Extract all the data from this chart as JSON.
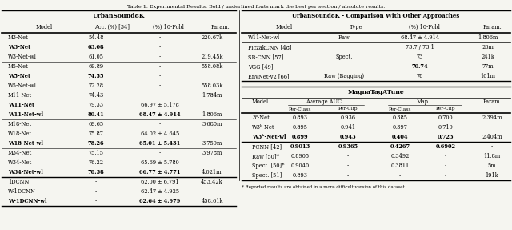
{
  "title": "Table 1. Experimental Results. Bold / underlined fonts mark the best per section / absolute results.",
  "background": "#f5f5f0",
  "left_table": {
    "header_title": "UrbanSound8K",
    "col_headers": [
      "Model",
      "Acc. (%) [34]",
      "(%) 10-Fold",
      "Param."
    ],
    "groups": [
      {
        "rows": [
          [
            "M3-Net",
            "54.48",
            "-",
            "220.67k"
          ],
          [
            "W3-Net",
            "63.08",
            "-",
            ""
          ],
          [
            "W3-Net-wl",
            "61.05",
            "-",
            "219.45k"
          ]
        ]
      },
      {
        "rows": [
          [
            "M5-Net",
            "69.89",
            "-",
            "558.08k"
          ],
          [
            "W5-Net",
            "74.55",
            "-",
            ""
          ],
          [
            "W5-Net-wl",
            "72.28",
            "-",
            "558.03k"
          ]
        ]
      },
      {
        "rows": [
          [
            "M11-Net",
            "74.43",
            "-",
            "1.784m"
          ],
          [
            "W11-Net",
            "79.33",
            "66.97 ± 5.178",
            ""
          ],
          [
            "W11-Net-wl",
            "80.41",
            "68.47 ± 4.914",
            "1.806m"
          ]
        ]
      },
      {
        "rows": [
          [
            "M18-Net",
            "69.65",
            "-",
            "3.680m"
          ],
          [
            "W18-Net",
            "75.87",
            "64.02 ± 4.645",
            ""
          ],
          [
            "W18-Net-wl",
            "78.26",
            "65.01 ± 5.431",
            "3.759m"
          ]
        ]
      },
      {
        "rows": [
          [
            "M34-Net",
            "75.15",
            "-",
            "3.978m"
          ],
          [
            "W34-Net",
            "76.22",
            "65.69 ± 5.780",
            ""
          ],
          [
            "W34-Net-wl",
            "78.38",
            "66.77 ± 4.771",
            "4.021m"
          ]
        ]
      },
      {
        "rows": [
          [
            "1DCNN",
            "-",
            "62.00 ± 6.791",
            "453.42k"
          ],
          [
            "W-1DCNN",
            "-",
            "62.47 ± 4.925",
            ""
          ],
          [
            "W-1DCNN-wl",
            "-",
            "62.64 ± 4.979",
            "458.61k"
          ]
        ]
      }
    ],
    "bold_cells": {
      "1_1": true,
      "2_1": true,
      "2_2": true,
      "4_1": true,
      "5_1": true,
      "5_2": true,
      "7_1": true,
      "8_1": true,
      "8_2": true,
      "10_1": true,
      "11_1": true,
      "11_2": true,
      "13_1": true,
      "14_1": true,
      "14_2": true,
      "17_1": true,
      "17_2": true
    },
    "underline_cells": {
      "7_1": true,
      "8_2": true
    }
  },
  "right_top_table": {
    "header_title": "UrbanSound8K - Comparison With Other Approaches",
    "col_headers": [
      "Model",
      "Type",
      "(%) 10-Fold",
      "Param."
    ],
    "rows": [
      [
        "W11-Net-wl",
        "Raw",
        "68.47 ± 4.914",
        "1.806m"
      ],
      [
        "PiczakCNN [48]",
        "",
        "73.7 / 73.1",
        "26m"
      ],
      [
        "SB-CNN [57]",
        "Spect.",
        "73",
        "241k"
      ],
      [
        "VGG [49]",
        "",
        "70.74",
        "77m"
      ],
      [
        "EnvNet-v2 [66]",
        "Raw (Bagging)",
        "78",
        "101m"
      ]
    ],
    "bold_cells": {
      "4_2": true
    },
    "underline_cells": {
      "4_2": true
    }
  },
  "right_bottom_table": {
    "header_title": "MagnaTagATune",
    "col_headers_top": [
      "Model",
      "Average AUC",
      "",
      "Map",
      "",
      "Param."
    ],
    "col_headers_mid": [
      "",
      "Per-Class",
      "Per-Clip",
      "Per-Class",
      "Per-Clip",
      ""
    ],
    "rows": [
      [
        "3ᵇ-Net",
        "0.893",
        "0.936",
        "0.385",
        "0.700",
        "2.394m"
      ],
      [
        "W3ᵇ-Net",
        "0.895",
        "0.941",
        "0.397",
        "0.719",
        ""
      ],
      [
        "W3ᵇ-Net-wl",
        "0.899",
        "0.943",
        "0.404",
        "0.723",
        "2.404m"
      ],
      [
        "PCNN [42]",
        "0.9013",
        "0.9365",
        "0.4267",
        "0.6902",
        "-"
      ],
      [
        "Raw [50]*",
        "0.8905",
        "-",
        "0.3492",
        "-",
        "11.8m"
      ],
      [
        "Spect. [50]*",
        "0.9040",
        "-",
        "0.3811",
        "-",
        "5m"
      ],
      [
        "Spect. [51]",
        "0.893",
        "-",
        "-",
        "-",
        "191k"
      ]
    ],
    "bold_cells": {
      "2_1": true,
      "2_2": true,
      "2_3": true,
      "2_4": true,
      "3_1": true,
      "3_2": true,
      "3_3": true,
      "3_4": true,
      "3_5": true
    },
    "underline_cells": {
      "2_2": true,
      "2_4": true,
      "3_1": true,
      "3_2": true
    },
    "footnote": "* Reported results are obtained in a more difficult version of this dataset."
  }
}
